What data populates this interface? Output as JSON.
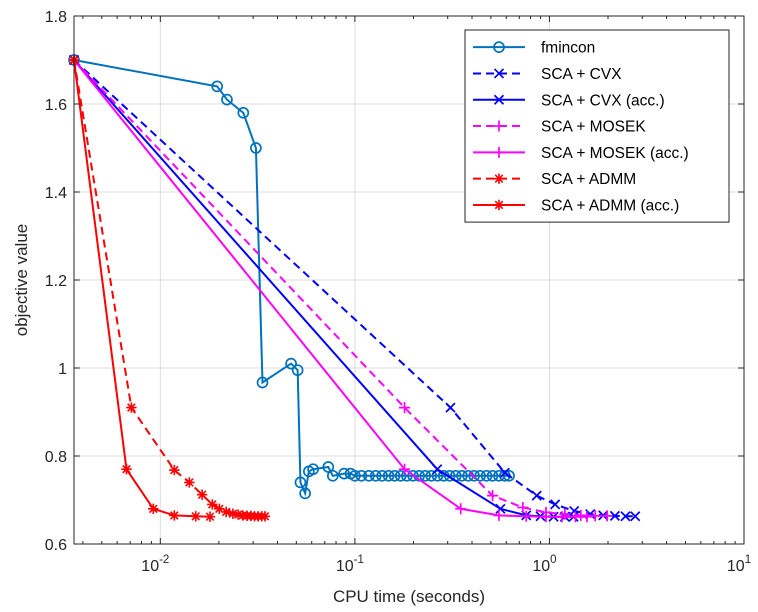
{
  "chart_data": {
    "type": "line",
    "xlabel": "CPU time (seconds)",
    "ylabel": "objective value",
    "xscale": "log",
    "xlim": [
      0.0036,
      10
    ],
    "ylim": [
      0.6,
      1.8
    ],
    "grid": true,
    "legend_position": "top-right",
    "x_ticks": [
      {
        "value": 0.01,
        "mantissa": "10",
        "exponent": "-2"
      },
      {
        "value": 0.1,
        "mantissa": "10",
        "exponent": "-1"
      },
      {
        "value": 1,
        "mantissa": "10",
        "exponent": "0"
      },
      {
        "value": 10,
        "mantissa": "10",
        "exponent": "1"
      }
    ],
    "y_ticks": [
      {
        "value": 0.6,
        "label": "0.6"
      },
      {
        "value": 0.8,
        "label": "0.8"
      },
      {
        "value": 1.0,
        "label": "1"
      },
      {
        "value": 1.2,
        "label": "1.2"
      },
      {
        "value": 1.4,
        "label": "1.4"
      },
      {
        "value": 1.6,
        "label": "1.6"
      },
      {
        "value": 1.8,
        "label": "1.8"
      }
    ],
    "series": [
      {
        "name": "fmincon",
        "color": "#0072BD",
        "line_style": "solid",
        "marker": "circle",
        "x": [
          0.0036,
          0.0196,
          0.022,
          0.0267,
          0.031,
          0.0335,
          0.047,
          0.0508,
          0.0525,
          0.0555,
          0.058,
          0.061,
          0.073,
          0.077,
          0.088,
          0.095,
          0.1,
          0.108,
          0.118,
          0.128,
          0.138,
          0.149,
          0.16,
          0.172,
          0.185,
          0.199,
          0.214,
          0.23,
          0.247,
          0.266,
          0.286,
          0.307,
          0.33,
          0.355,
          0.382,
          0.41,
          0.44,
          0.475,
          0.51,
          0.55,
          0.59,
          0.62
        ],
        "y": [
          1.7,
          1.64,
          1.61,
          1.58,
          1.5,
          0.967,
          1.01,
          0.995,
          0.74,
          0.715,
          0.765,
          0.77,
          0.775,
          0.755,
          0.76,
          0.76,
          0.755,
          0.755,
          0.755,
          0.755,
          0.755,
          0.755,
          0.755,
          0.755,
          0.755,
          0.755,
          0.755,
          0.755,
          0.755,
          0.755,
          0.755,
          0.755,
          0.755,
          0.755,
          0.755,
          0.755,
          0.755,
          0.755,
          0.755,
          0.755,
          0.755,
          0.755
        ]
      },
      {
        "name": "SCA + CVX",
        "color": "#0000FF",
        "line_style": "dashed",
        "marker": "x",
        "x": [
          0.0036,
          0.31,
          0.59,
          0.86,
          1.07,
          1.34,
          1.62,
          1.89,
          2.17,
          2.46,
          2.76
        ],
        "y": [
          1.7,
          0.91,
          0.762,
          0.71,
          0.69,
          0.675,
          0.668,
          0.665,
          0.664,
          0.663,
          0.663
        ]
      },
      {
        "name": "SCA + CVX (acc.)",
        "color": "#0000FF",
        "line_style": "solid",
        "marker": "x",
        "x": [
          0.0036,
          0.265,
          0.56,
          0.76,
          0.9,
          1.05,
          1.2,
          1.33
        ],
        "y": [
          1.7,
          0.77,
          0.68,
          0.665,
          0.663,
          0.662,
          0.662,
          0.662
        ]
      },
      {
        "name": "SCA + MOSEK",
        "color": "#FF00FF",
        "line_style": "dashed",
        "marker": "plus",
        "x": [
          0.0036,
          0.18,
          0.51,
          0.73,
          0.96,
          1.2,
          1.45,
          1.72,
          1.98
        ],
        "y": [
          1.7,
          0.91,
          0.71,
          0.683,
          0.672,
          0.668,
          0.665,
          0.664,
          0.664
        ]
      },
      {
        "name": "SCA + MOSEK (acc.)",
        "color": "#FF00FF",
        "line_style": "solid",
        "marker": "plus",
        "x": [
          0.0036,
          0.18,
          0.35,
          0.55,
          0.76,
          0.96,
          1.16,
          1.36,
          1.56
        ],
        "y": [
          1.7,
          0.77,
          0.68,
          0.665,
          0.663,
          0.662,
          0.662,
          0.662,
          0.662
        ]
      },
      {
        "name": "SCA + ADMM",
        "color": "#FF0000",
        "line_style": "dashed",
        "marker": "asterisk",
        "x": [
          0.0036,
          0.0071,
          0.0118,
          0.0141,
          0.0164,
          0.0185,
          0.0201,
          0.0218,
          0.0236,
          0.0251,
          0.0265,
          0.0279,
          0.0292,
          0.0305,
          0.0318,
          0.0332,
          0.0345
        ],
        "y": [
          1.7,
          0.91,
          0.768,
          0.74,
          0.712,
          0.69,
          0.68,
          0.673,
          0.669,
          0.667,
          0.665,
          0.664,
          0.664,
          0.663,
          0.663,
          0.663,
          0.663
        ]
      },
      {
        "name": "SCA + ADMM (acc.)",
        "color": "#FF0000",
        "line_style": "solid",
        "marker": "asterisk",
        "x": [
          0.0036,
          0.0067,
          0.0092,
          0.0118,
          0.0152,
          0.018
        ],
        "y": [
          1.7,
          0.77,
          0.68,
          0.665,
          0.663,
          0.662
        ]
      }
    ]
  }
}
